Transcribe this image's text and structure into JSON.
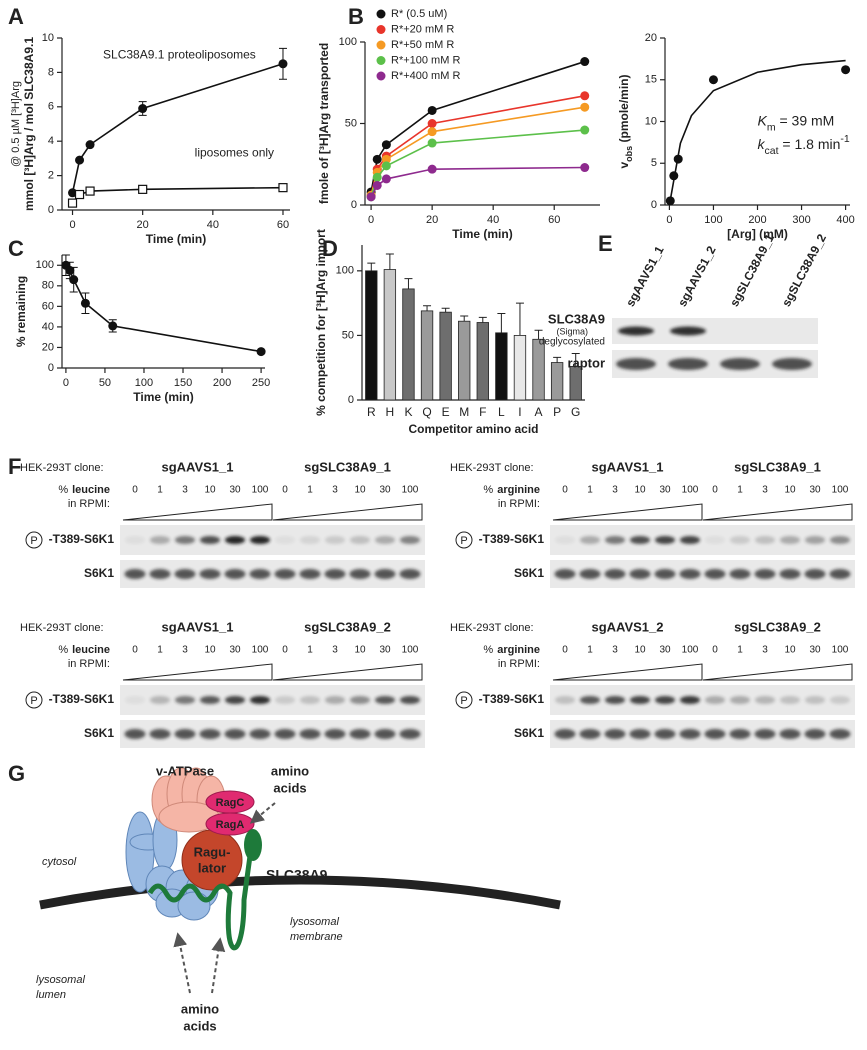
{
  "panel_labels": [
    "A",
    "B",
    "C",
    "D",
    "E",
    "F",
    "G"
  ],
  "chart_data": [
    {
      "type": "line",
      "ylabel": [
        "mmol [³H]Arg / mol SLC38A9.1",
        "@ 0.5 µM [³H]Arg"
      ],
      "xlabel": "Time (min)",
      "xlim": [
        -3,
        62
      ],
      "xticks": [
        0,
        20,
        40,
        60
      ],
      "ylim": [
        0,
        10
      ],
      "yticks": [
        0,
        2,
        4,
        6,
        8,
        10
      ],
      "annotations": [
        "SLC38A9.1 proteoliposomes",
        "liposomes only"
      ],
      "series": [
        {
          "color": "#111111",
          "marker": "circle",
          "x": [
            0,
            2,
            5,
            20,
            60
          ],
          "values": [
            1.0,
            2.9,
            3.8,
            5.9,
            8.5
          ],
          "errors": [
            0,
            0,
            0,
            0.4,
            0.9
          ]
        },
        {
          "color": "#111111",
          "marker": "square",
          "x": [
            0,
            2,
            5,
            20,
            60
          ],
          "values": [
            0.4,
            0.9,
            1.1,
            1.2,
            1.3
          ],
          "errors": [
            0,
            0,
            0,
            0,
            0
          ]
        }
      ]
    },
    {
      "type": "line",
      "ylabel": [
        "fmole of [³H]Arg transported"
      ],
      "xlabel": "Time (min)",
      "xlim": [
        -2,
        75
      ],
      "xticks": [
        0,
        20,
        40,
        60
      ],
      "ylim": [
        0,
        100
      ],
      "yticks": [
        0,
        50,
        100
      ],
      "legend": "upper left",
      "series": [
        {
          "name": "R* (0.5 uM)",
          "color": "#111111",
          "marker": "circle",
          "x": [
            0,
            2,
            5,
            20,
            70
          ],
          "values": [
            8,
            28,
            37,
            58,
            88
          ]
        },
        {
          "name": "R*+20 mM R",
          "color": "#e8352b",
          "marker": "circle",
          "x": [
            0,
            2,
            5,
            20,
            70
          ],
          "values": [
            6,
            22,
            30,
            50,
            67
          ]
        },
        {
          "name": "R*+50 mM R",
          "color": "#f59a23",
          "marker": "circle",
          "x": [
            0,
            2,
            5,
            20,
            70
          ],
          "values": [
            6,
            20,
            28,
            45,
            60
          ]
        },
        {
          "name": "R*+100 mM R",
          "color": "#5cc04a",
          "marker": "circle",
          "x": [
            0,
            2,
            5,
            20,
            70
          ],
          "values": [
            5,
            17,
            24,
            38,
            46
          ]
        },
        {
          "name": "R*+400 mM R",
          "color": "#8e2a8e",
          "marker": "circle",
          "x": [
            0,
            2,
            5,
            20,
            70
          ],
          "values": [
            5,
            12,
            16,
            22,
            23
          ]
        }
      ]
    },
    {
      "type": "scatter",
      "ylabel": [
        [
          "v",
          "obs",
          " (pmole/min)"
        ]
      ],
      "xlabel": "[Arg] (mM)",
      "xlim": [
        -10,
        410
      ],
      "xticks": [
        0,
        100,
        200,
        300,
        400
      ],
      "ylim": [
        0,
        20
      ],
      "yticks": [
        0,
        5,
        10,
        15,
        20
      ],
      "annotations": [
        [
          "K",
          "m",
          " = 39 mM"
        ],
        [
          "k",
          "cat",
          " = 1.8 min",
          "-1"
        ]
      ],
      "series": [
        {
          "color": "#111111",
          "marker": "circle",
          "connect": false,
          "x": [
            2,
            10,
            20,
            100,
            400
          ],
          "values": [
            0.5,
            3.5,
            5.5,
            15,
            16.2
          ]
        },
        {
          "color": "#111111",
          "marker": "none",
          "x": [
            0,
            25,
            50,
            100,
            200,
            300,
            400
          ],
          "values": [
            0,
            7.4,
            10.7,
            13.7,
            15.9,
            16.8,
            17.3
          ]
        }
      ]
    },
    {
      "type": "line",
      "ylabel": [
        "% remaining"
      ],
      "xlabel": "Time (min)",
      "xlim": [
        -5,
        255
      ],
      "xticks": [
        0,
        50,
        100,
        150,
        200,
        250
      ],
      "ylim": [
        0,
        110
      ],
      "yticks": [
        0,
        20,
        40,
        60,
        80,
        100
      ],
      "series": [
        {
          "color": "#111111",
          "marker": "circle",
          "x": [
            0,
            5,
            10,
            25,
            60,
            250
          ],
          "values": [
            100,
            95,
            86,
            63,
            41,
            16
          ],
          "errors": [
            10,
            8,
            12,
            10,
            6,
            1
          ]
        }
      ]
    },
    {
      "type": "bar",
      "ylabel": [
        "% competition for [³H]Arg import"
      ],
      "xlabel": "Competitor amino acid",
      "ylim": [
        0,
        120
      ],
      "yticks": [
        0,
        50,
        100
      ],
      "categories": [
        "R",
        "H",
        "K",
        "Q",
        "E",
        "M",
        "F",
        "L",
        "I",
        "A",
        "P",
        "G"
      ],
      "values": [
        100,
        101,
        86,
        69,
        68,
        61,
        60,
        52,
        50,
        47,
        29,
        26
      ],
      "errors": [
        6,
        12,
        8,
        4,
        3,
        4,
        4,
        15,
        25,
        7,
        4,
        10
      ],
      "colors": [
        "#111111",
        "#c8c8c8",
        "#6e6e6e",
        "#9a9a9a",
        "#6e6e6e",
        "#9a9a9a",
        "#6e6e6e",
        "#111111",
        "#e8e8e8",
        "#9a9a9a",
        "#9a9a9a",
        "#6e6e6e"
      ]
    }
  ],
  "blot_E": {
    "lanes": [
      "sgAAVS1_1",
      "sgAAVS1_2",
      "sgSLC38A9_1",
      "sgSLC38A9_2"
    ],
    "rows": [
      {
        "label": "SLC38A9",
        "sublabels": [
          "(Sigma)",
          "deglycosylated"
        ]
      },
      {
        "label": "raptor"
      }
    ]
  },
  "blots_F": [
    {
      "clone_label": "HEK-293T clone:",
      "clones": [
        "sgAAVS1_1",
        "sgSLC38A9_1"
      ],
      "treatment_prefix": "%",
      "treatment": "leucine",
      "medium": "in RPMI:",
      "concentrations": [
        0,
        1,
        3,
        10,
        30,
        100,
        0,
        1,
        3,
        10,
        30,
        100
      ],
      "rows": [
        "P",
        "-T389-S6K1",
        "S6K1"
      ]
    },
    {
      "clone_label": "HEK-293T clone:",
      "clones": [
        "sgAAVS1_1",
        "sgSLC38A9_1"
      ],
      "treatment_prefix": "%",
      "treatment": "arginine",
      "medium": "in RPMI:",
      "concentrations": [
        0,
        1,
        3,
        10,
        30,
        100,
        0,
        1,
        3,
        10,
        30,
        100
      ],
      "rows": [
        "P",
        "-T389-S6K1",
        "S6K1"
      ]
    },
    {
      "clone_label": "HEK-293T clone:",
      "clones": [
        "sgAAVS1_1",
        "sgSLC38A9_2"
      ],
      "treatment_prefix": "%",
      "treatment": "leucine",
      "medium": "in RPMI:",
      "concentrations": [
        0,
        1,
        3,
        10,
        30,
        100,
        0,
        1,
        3,
        10,
        30,
        100
      ],
      "rows": [
        "P",
        "-T389-S6K1",
        "S6K1"
      ]
    },
    {
      "clone_label": "HEK-293T clone:",
      "clones": [
        "sgAAVS1_2",
        "sgSLC38A9_2"
      ],
      "treatment_prefix": "%",
      "treatment": "arginine",
      "medium": "in RPMI:",
      "concentrations": [
        0,
        1,
        3,
        10,
        30,
        100,
        0,
        1,
        3,
        10,
        30,
        100
      ],
      "rows": [
        "P",
        "-T389-S6K1",
        "S6K1"
      ]
    }
  ],
  "diagram_G": {
    "v_atpase": "v-ATPase",
    "amino_acids_top": [
      "amino",
      "acids"
    ],
    "ragc": "RagC",
    "raga": "RagA",
    "ragulator": [
      "Ragu-",
      "lator"
    ],
    "slc38a9": "SLC38A9",
    "cytosol": "cytosol",
    "membrane": [
      "lysosomal",
      "membrane"
    ],
    "lumen": [
      "lysosomal",
      "lumen"
    ],
    "amino_acids_bottom": [
      "amino",
      "acids"
    ]
  }
}
